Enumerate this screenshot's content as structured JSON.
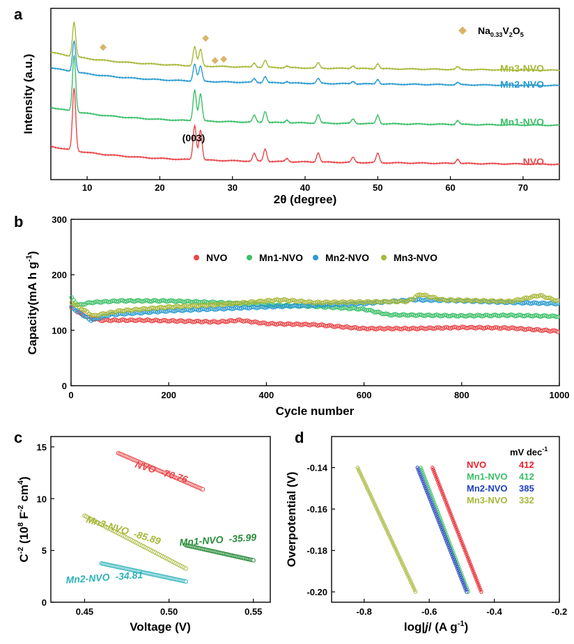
{
  "chart_data": [
    {
      "panel": "a",
      "type": "line",
      "xlabel_pre": "2",
      "xlabel_theta": "θ",
      "xlabel_post": " (degree)",
      "ylabel": "Intensity (a.u.)",
      "xlim": [
        5,
        75
      ],
      "xticks": [
        "10",
        "20",
        "30",
        "40",
        "50",
        "60",
        "70"
      ],
      "legend": {
        "label_base": "Na",
        "sub1": "0.33",
        "mid": "V",
        "sub2": "2",
        "tail": "O",
        "sub3": "5",
        "color": "#d9b56a"
      },
      "peak_annotation": "(003)",
      "peak_annotation_x": 24.8,
      "marker_peaks": [
        12.2,
        26.3,
        27.6,
        28.8
      ],
      "peaks": [
        {
          "x": 8.2,
          "h": 1.0
        },
        {
          "x": 24.8,
          "h": 0.55
        },
        {
          "x": 25.6,
          "h": 0.48
        },
        {
          "x": 33.0,
          "h": 0.12
        },
        {
          "x": 34.5,
          "h": 0.2
        },
        {
          "x": 37.5,
          "h": 0.05
        },
        {
          "x": 41.8,
          "h": 0.15
        },
        {
          "x": 46.6,
          "h": 0.08
        },
        {
          "x": 50.0,
          "h": 0.15
        },
        {
          "x": 61.0,
          "h": 0.07
        }
      ],
      "series": [
        {
          "name": "NVO",
          "color": "#e8474a",
          "scale": 1.0
        },
        {
          "name": "Mn1-NVO",
          "color": "#3bbf67",
          "scale": 0.9
        },
        {
          "name": "Mn2-NVO",
          "color": "#2b9bcf",
          "scale": 0.5
        },
        {
          "name": "Mn3-NVO",
          "color": "#a8b83a",
          "scale": 0.55
        }
      ]
    },
    {
      "panel": "b",
      "type": "scatter",
      "xlabel": "Cycle number",
      "ylabel": "Capacity(mA h g",
      "ylabel_sup": "-1",
      "ylabel_close": ")",
      "xlim": [
        0,
        1000
      ],
      "ylim": [
        0,
        300
      ],
      "xticks": [
        "0",
        "200",
        "400",
        "600",
        "800",
        "1000"
      ],
      "yticks": [
        "0",
        "100",
        "200",
        "300"
      ],
      "legend_placement": "top-center",
      "series": [
        {
          "name": "NVO",
          "color": "#e8474a",
          "points": [
            [
              1,
              140
            ],
            [
              30,
              125
            ],
            [
              60,
              118
            ],
            [
              150,
              118
            ],
            [
              300,
              115
            ],
            [
              345,
              118
            ],
            [
              400,
              112
            ],
            [
              500,
              110
            ],
            [
              600,
              103
            ],
            [
              700,
              103
            ],
            [
              800,
              105
            ],
            [
              900,
              104
            ],
            [
              1000,
              98
            ]
          ]
        },
        {
          "name": "Mn1-NVO",
          "color": "#3bbf67",
          "points": [
            [
              1,
              158
            ],
            [
              15,
              145
            ],
            [
              40,
              150
            ],
            [
              100,
              153
            ],
            [
              200,
              153
            ],
            [
              300,
              150
            ],
            [
              400,
              146
            ],
            [
              500,
              143
            ],
            [
              600,
              138
            ],
            [
              650,
              128
            ],
            [
              800,
              126
            ],
            [
              900,
              127
            ],
            [
              1000,
              125
            ]
          ]
        },
        {
          "name": "Mn2-NVO",
          "color": "#2b9bcf",
          "points": [
            [
              1,
              142
            ],
            [
              20,
              130
            ],
            [
              40,
              118
            ],
            [
              80,
              128
            ],
            [
              200,
              135
            ],
            [
              400,
              142
            ],
            [
              600,
              148
            ],
            [
              700,
              155
            ],
            [
              800,
              153
            ],
            [
              900,
              150
            ],
            [
              1000,
              148
            ]
          ]
        },
        {
          "name": "Mn3-NVO",
          "color": "#a8b83a",
          "points": [
            [
              1,
              150
            ],
            [
              20,
              140
            ],
            [
              45,
              126
            ],
            [
              100,
              135
            ],
            [
              200,
              142
            ],
            [
              300,
              146
            ],
            [
              430,
              155
            ],
            [
              500,
              150
            ],
            [
              690,
              152
            ],
            [
              715,
              165
            ],
            [
              760,
              155
            ],
            [
              900,
              152
            ],
            [
              960,
              163
            ],
            [
              1000,
              152
            ]
          ]
        }
      ]
    },
    {
      "panel": "c",
      "type": "line",
      "xlabel": "Voltage (V)",
      "ylabel_pre": "C",
      "ylabel_sup1": "-2",
      "ylabel_mid": " (10",
      "ylabel_sup2": "8",
      "ylabel_f": " F",
      "ylabel_sup3": "-2",
      "ylabel_cm": " cm",
      "ylabel_sup4": "4",
      "ylabel_close": ")",
      "xlim": [
        0.43,
        0.56
      ],
      "ylim": [
        0,
        16
      ],
      "xticks": [
        "0.45",
        "0.50",
        "0.55"
      ],
      "yticks": [
        "0",
        "5",
        "10",
        "15"
      ],
      "series": [
        {
          "name": "NVO",
          "slope": "-70.76",
          "color": "#e8474a",
          "x": [
            0.47,
            0.52
          ],
          "y": [
            14.4,
            10.9
          ]
        },
        {
          "name": "Mn3-NVO",
          "slope": "-85.89",
          "color": "#a8b83a",
          "x": [
            0.45,
            0.51
          ],
          "y": [
            8.35,
            3.25
          ]
        },
        {
          "name": "Mn1-NVO",
          "slope": "-35.99",
          "color": "#2a8c3a",
          "x": [
            0.51,
            0.55
          ],
          "y": [
            5.5,
            4.05
          ]
        },
        {
          "name": "Mn2-NVO",
          "slope": "-34.81",
          "color": "#2bb3b8",
          "x": [
            0.46,
            0.51
          ],
          "y": [
            3.75,
            2.0
          ]
        }
      ]
    },
    {
      "panel": "d",
      "type": "line",
      "xlabel_pre": "log|",
      "xlabel_j": "j",
      "xlabel_post": "/ (A g",
      "xlabel_sup": "-1",
      "xlabel_close": ")",
      "ylabel": "Overpotential (V)",
      "xlim": [
        -0.9,
        -0.2
      ],
      "ylim": [
        -0.205,
        -0.125
      ],
      "xticks": [
        "-0.8",
        "-0.6",
        "-0.4",
        "-0.2"
      ],
      "yticks": [
        "-0.14",
        "-0.16",
        "-0.18",
        "-0.20"
      ],
      "legend_header": "mV dec",
      "legend_header_sup": "-1",
      "series": [
        {
          "name": "NVO",
          "tafel": "412",
          "color": "#e8202a",
          "x": [
            -0.59,
            -0.44
          ],
          "y": [
            -0.14,
            -0.2
          ]
        },
        {
          "name": "Mn1-NVO",
          "tafel": "412",
          "color": "#3bbf67",
          "x": [
            -0.626,
            -0.48
          ],
          "y": [
            -0.14,
            -0.2
          ]
        },
        {
          "name": "Mn2-NVO",
          "tafel": "385",
          "color": "#1f3fbf",
          "x": [
            -0.636,
            -0.485
          ],
          "y": [
            -0.14,
            -0.2
          ]
        },
        {
          "name": "Mn3-NVO",
          "tafel": "332",
          "color": "#a8b83a",
          "x": [
            -0.82,
            -0.642
          ],
          "y": [
            -0.14,
            -0.2
          ]
        }
      ]
    }
  ],
  "panel_letters": {
    "a": "a",
    "b": "b",
    "c": "c",
    "d": "d"
  }
}
